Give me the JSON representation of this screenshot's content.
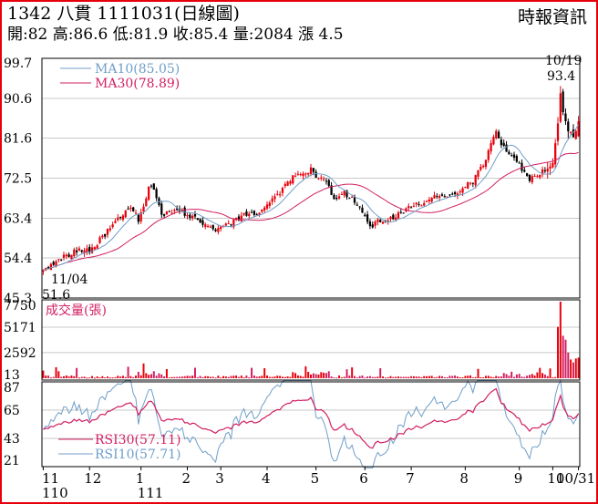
{
  "header": {
    "title": "1342 八貫 1111031(日線圖)",
    "stats": "開:82 高:86.6 低:81.9 收:85.4 量:2084 漲 4.5",
    "source": "時報資訊"
  },
  "colors": {
    "up": "#e8000b",
    "down": "#000000",
    "ma10": "#6f9ec8",
    "ma30": "#d21e62",
    "frame": "#e8000b",
    "grid": "#c8c8c8"
  },
  "chart_data": [
    {
      "type": "candlestick",
      "panel": "price",
      "ylim": [
        45.3,
        99.7
      ],
      "yticks": [
        "99.7",
        "90.6",
        "81.6",
        "72.5",
        "63.4",
        "54.4",
        "45.3"
      ],
      "legend": [
        {
          "label": "MA10(85.05)",
          "color": "#6f9ec8"
        },
        {
          "label": "MA30(78.89)",
          "color": "#d21e62"
        }
      ],
      "annotations": [
        {
          "date": "10/19",
          "value": "93.4",
          "text_top": "10/19",
          "text_bottom": "93.4"
        },
        {
          "date": "11/04",
          "value": "51.6",
          "text_top": "11/04",
          "text_bottom": "51.6"
        }
      ],
      "anchors": [
        [
          0,
          51.6
        ],
        [
          8,
          54.5
        ],
        [
          14,
          56.6
        ],
        [
          18,
          55.8
        ],
        [
          22,
          58.5
        ],
        [
          28,
          62.5
        ],
        [
          34,
          66.5
        ],
        [
          37,
          62.8
        ],
        [
          40,
          68.5
        ],
        [
          42,
          71.5
        ],
        [
          46,
          63.8
        ],
        [
          52,
          65.5
        ],
        [
          58,
          63.8
        ],
        [
          62,
          62.3
        ],
        [
          66,
          61.0
        ],
        [
          72,
          61.8
        ],
        [
          78,
          64.2
        ],
        [
          84,
          65.0
        ],
        [
          88,
          66.8
        ],
        [
          94,
          70.5
        ],
        [
          98,
          73.5
        ],
        [
          104,
          74.5
        ],
        [
          106,
          73.0
        ],
        [
          110,
          71.5
        ],
        [
          113,
          67.8
        ],
        [
          117,
          69.0
        ],
        [
          121,
          67.5
        ],
        [
          124,
          64.5
        ],
        [
          127,
          61.5
        ],
        [
          131,
          62.8
        ],
        [
          136,
          63.5
        ],
        [
          141,
          65.5
        ],
        [
          146,
          66.5
        ],
        [
          151,
          67.8
        ],
        [
          156,
          68.8
        ],
        [
          161,
          69.5
        ],
        [
          167,
          71.8
        ],
        [
          172,
          76.8
        ],
        [
          176,
          83.0
        ],
        [
          179,
          79.5
        ],
        [
          183,
          77.5
        ],
        [
          186,
          74.5
        ],
        [
          189,
          72.5
        ],
        [
          193,
          73.5
        ],
        [
          198,
          75.5
        ],
        [
          200,
          85.0
        ],
        [
          201,
          91.5
        ],
        [
          202,
          87.5
        ],
        [
          204,
          83.5
        ],
        [
          206,
          82.0
        ],
        [
          208,
          85.4
        ]
      ],
      "ma10_final": 85.05,
      "ma30_final": 78.89,
      "last_ohlc": {
        "open": 82,
        "high": 86.6,
        "low": 81.9,
        "close": 85.4
      }
    },
    {
      "type": "bar",
      "panel": "volume",
      "title": "成交量(張)",
      "ylim": [
        13,
        7750
      ],
      "yticks": [
        "7750",
        "5171",
        "2592",
        "13"
      ],
      "last_volume": 2084,
      "peaks": [
        [
          200,
          5200
        ],
        [
          201,
          7750
        ],
        [
          202,
          4300
        ],
        [
          203,
          3900
        ],
        [
          204,
          2600
        ],
        [
          205,
          1900
        ],
        [
          206,
          1600
        ],
        [
          207,
          2000
        ],
        [
          208,
          2084
        ]
      ]
    },
    {
      "type": "line",
      "panel": "rsi",
      "ylim": [
        21,
        87
      ],
      "yticks": [
        "87",
        "65",
        "43",
        "21"
      ],
      "legend": [
        {
          "label": "RSI30(57.11)",
          "color": "#d21e62"
        },
        {
          "label": "RSI10(57.71)",
          "color": "#6f9ec8"
        }
      ],
      "rsi30_final": 57.11,
      "rsi10_final": 57.71
    }
  ],
  "x_axis": {
    "ticks": [
      {
        "label": "11",
        "index": 0
      },
      {
        "label": "12",
        "index": 18
      },
      {
        "label": "1",
        "index": 38
      },
      {
        "label": "2",
        "index": 56
      },
      {
        "label": "3",
        "index": 69
      },
      {
        "label": "4",
        "index": 87
      },
      {
        "label": "5",
        "index": 106
      },
      {
        "label": "6",
        "index": 125
      },
      {
        "label": "7",
        "index": 143
      },
      {
        "label": "8",
        "index": 164
      },
      {
        "label": "9",
        "index": 185
      },
      {
        "label": "10",
        "index": 198
      },
      {
        "label": "10/31",
        "index": 208
      }
    ],
    "years": [
      {
        "label": "110",
        "index": 0
      },
      {
        "label": "111",
        "index": 38
      }
    ]
  }
}
